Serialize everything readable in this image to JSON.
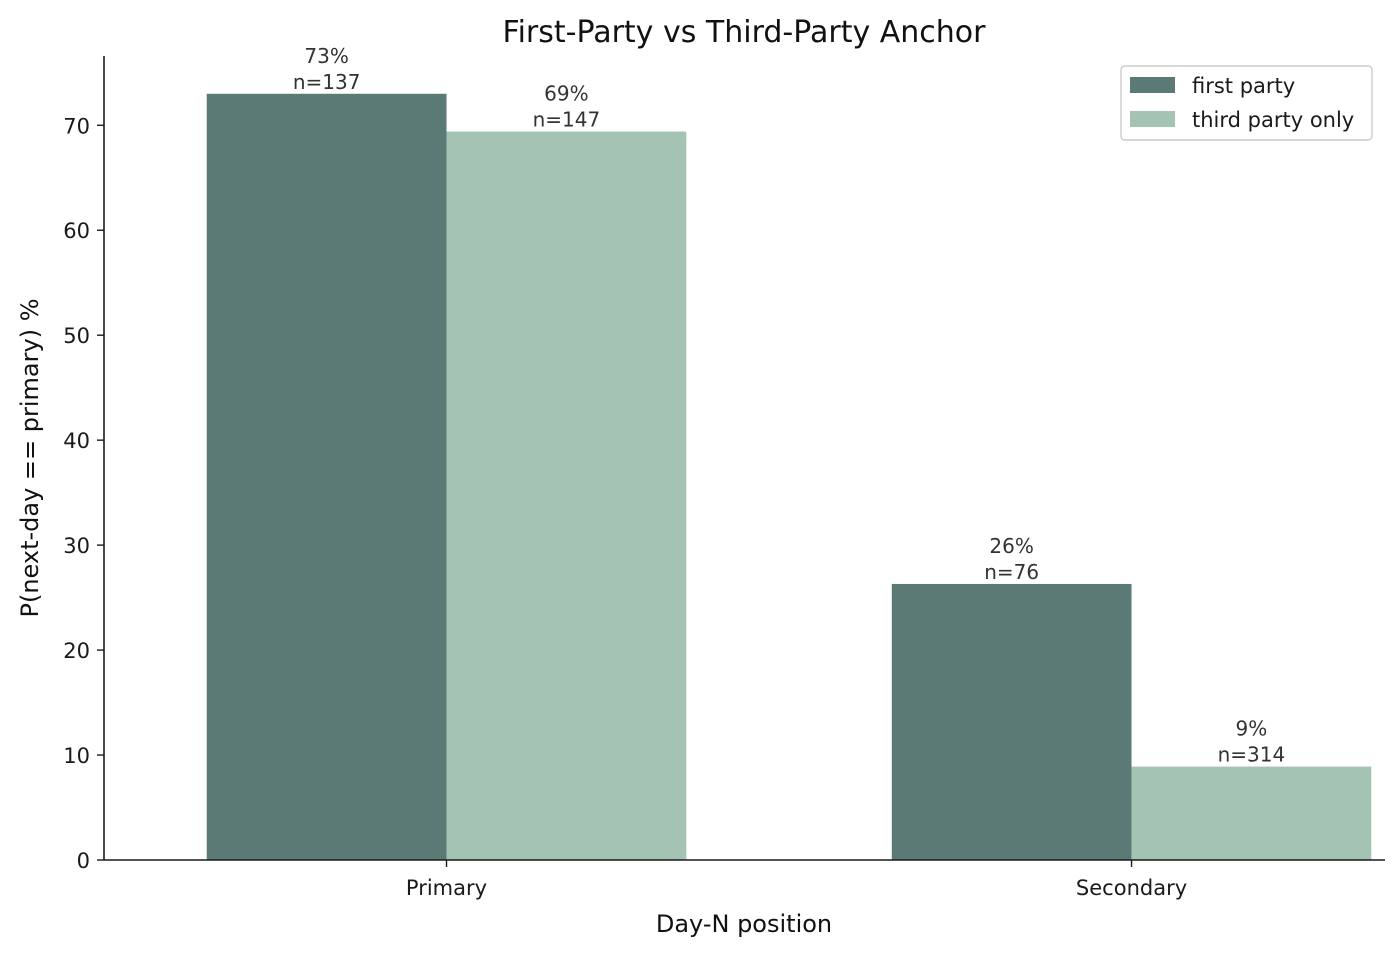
{
  "chart_data": {
    "type": "bar",
    "title": "First-Party vs Third-Party Anchor",
    "xlabel": "Day-N position",
    "ylabel": "P(next-day == primary)  %",
    "categories": [
      "Primary",
      "Secondary"
    ],
    "series": [
      {
        "name": "first party",
        "color": "#5b7a76",
        "values": [
          73.0,
          26.3
        ],
        "labels": [
          {
            "pct": "73%",
            "n": "n=137"
          },
          {
            "pct": "26%",
            "n": "n=76"
          }
        ]
      },
      {
        "name": "third party only",
        "color": "#a5c3b2",
        "values": [
          69.4,
          8.9
        ],
        "labels": [
          {
            "pct": "69%",
            "n": "n=147"
          },
          {
            "pct": "9%",
            "n": "n=314"
          }
        ]
      }
    ],
    "ylim": [
      0,
      76.6
    ],
    "yticks": [
      0,
      10,
      20,
      30,
      40,
      50,
      60,
      70
    ],
    "grid": false,
    "legend_position": "top-right"
  }
}
